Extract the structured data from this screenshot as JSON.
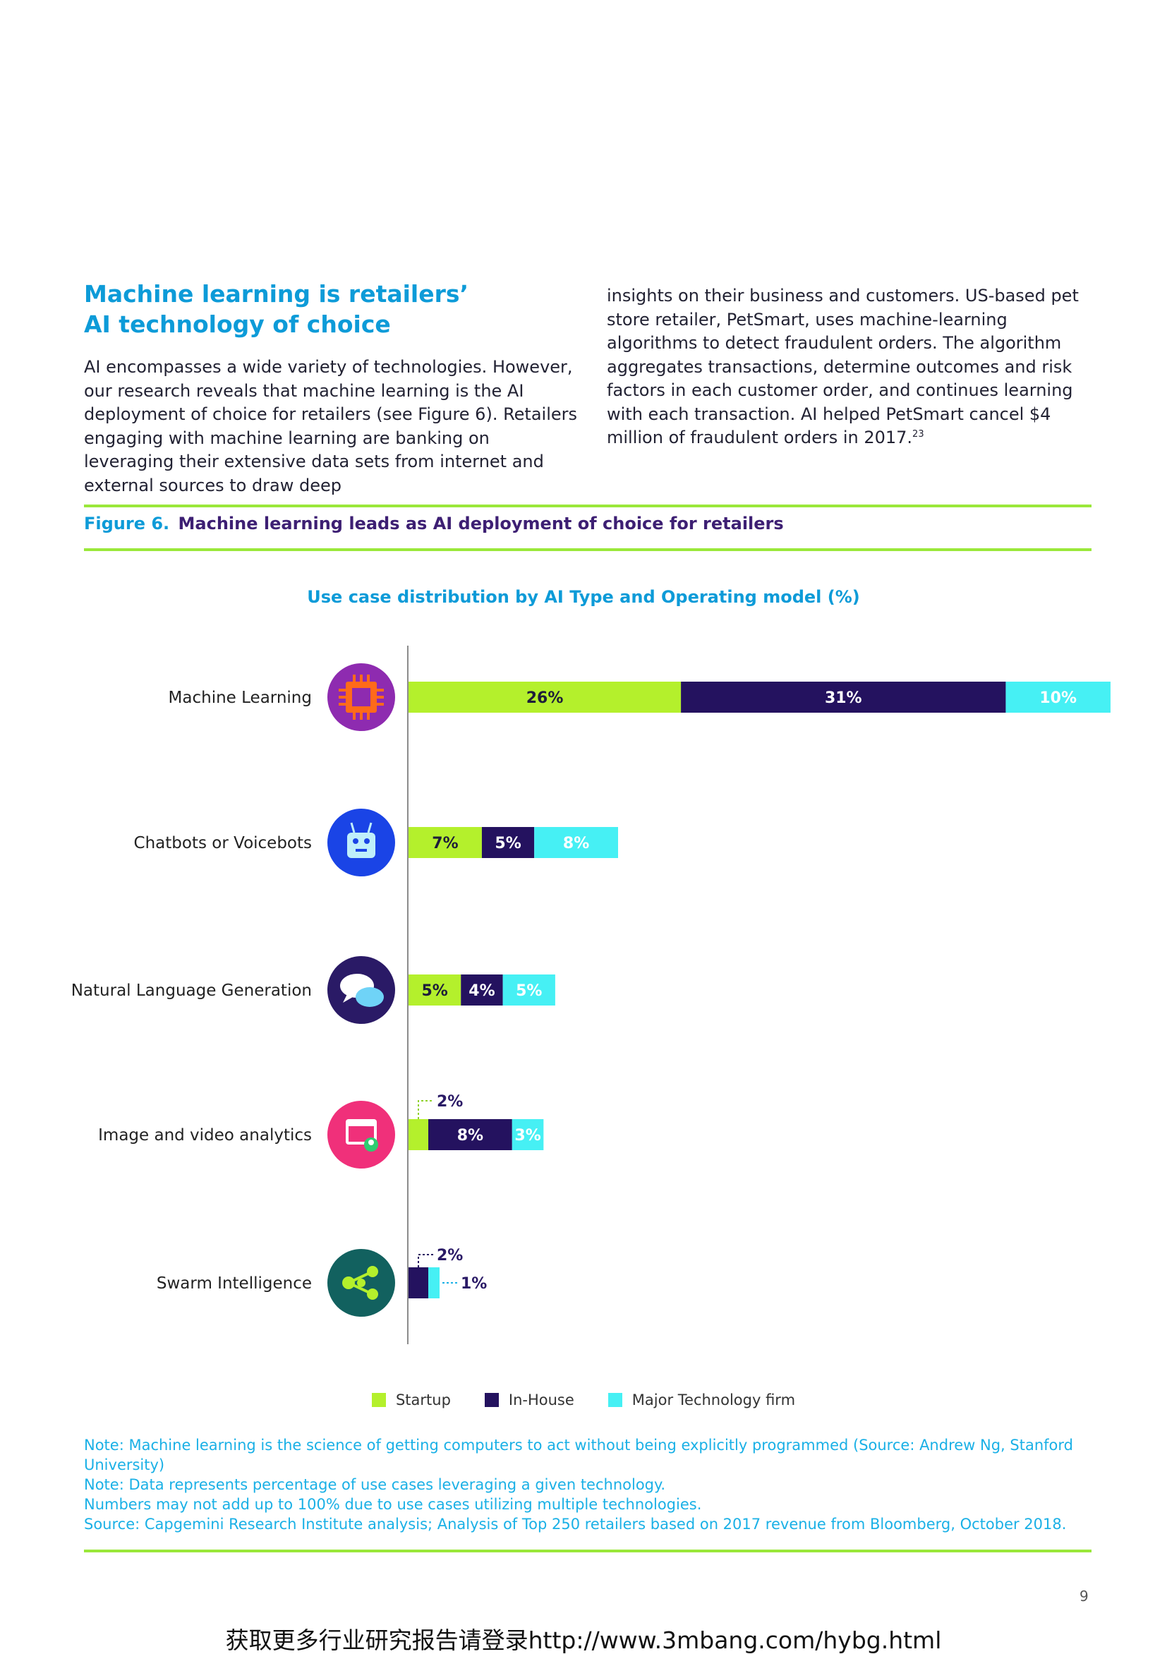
{
  "section": {
    "heading": "Machine learning is retailers’ AI technology of choice",
    "col1": "AI encompasses a wide variety of technologies. However, our research reveals that machine learning is the AI deployment of choice for retailers (see Figure 6). Retailers engaging with machine learning are banking on leveraging their extensive data sets from internet and external sources to draw deep",
    "col2": "insights on their business and customers. US-based pet store retailer, PetSmart, uses machine-learning algorithms to detect fraudulent orders. The algorithm aggregates transactions, determine outcomes and risk factors in each customer order, and continues learning with each transaction. AI helped PetSmart cancel $4 million of fraudulent orders in 2017.",
    "col2_footnote": "23"
  },
  "figure": {
    "number": "Figure 6.",
    "title": "Machine learning leads as AI deployment of choice for retailers"
  },
  "chart_data": {
    "type": "bar",
    "orientation": "horizontal",
    "stacked": true,
    "title": "Use case distribution by AI Type and Operating model (%)",
    "categories": [
      "Machine Learning",
      "Chatbots or Voicebots",
      "Natural Language Generation",
      "Image and video analytics",
      "Swarm Intelligence"
    ],
    "category_icons": [
      "chip-icon",
      "robot-icon",
      "chat-bubbles-icon",
      "video-analytics-icon",
      "swarm-nodes-icon"
    ],
    "icon_colors": [
      "#8e2bb0",
      "#1a44e6",
      "#2a1a66",
      "#f0307a",
      "#12615f"
    ],
    "series": [
      {
        "name": "Startup",
        "color": "#b4f02c",
        "values": [
          26,
          7,
          5,
          2,
          0
        ],
        "labels": [
          "26%",
          "7%",
          "5%",
          "2%",
          ""
        ]
      },
      {
        "name": "In-House",
        "color": "#24125f",
        "values": [
          31,
          5,
          4,
          8,
          2
        ],
        "labels": [
          "31%",
          "5%",
          "4%",
          "8%",
          "2%"
        ]
      },
      {
        "name": "Major Technology firm",
        "color": "#46f0f4",
        "values": [
          10,
          8,
          5,
          3,
          1
        ],
        "labels": [
          "10%",
          "8%",
          "5%",
          "3%",
          "1%"
        ]
      }
    ],
    "legend_position": "bottom",
    "grid": false
  },
  "notes": [
    "Note: Machine learning is the science of getting computers to act without being explicitly programmed (Source: Andrew Ng, Stanford University)",
    "Note: Data represents percentage of use cases leveraging a given technology.",
    "Numbers may not add up to 100% due to use cases utilizing multiple technologies.",
    "Source: Capgemini Research Institute analysis; Analysis of Top 250 retailers based on 2017 revenue from Bloomberg, October 2018."
  ],
  "page_number": "9",
  "footer_link": "获取更多行业研究报告请登录http://www.3mbang.com/hybg.html"
}
